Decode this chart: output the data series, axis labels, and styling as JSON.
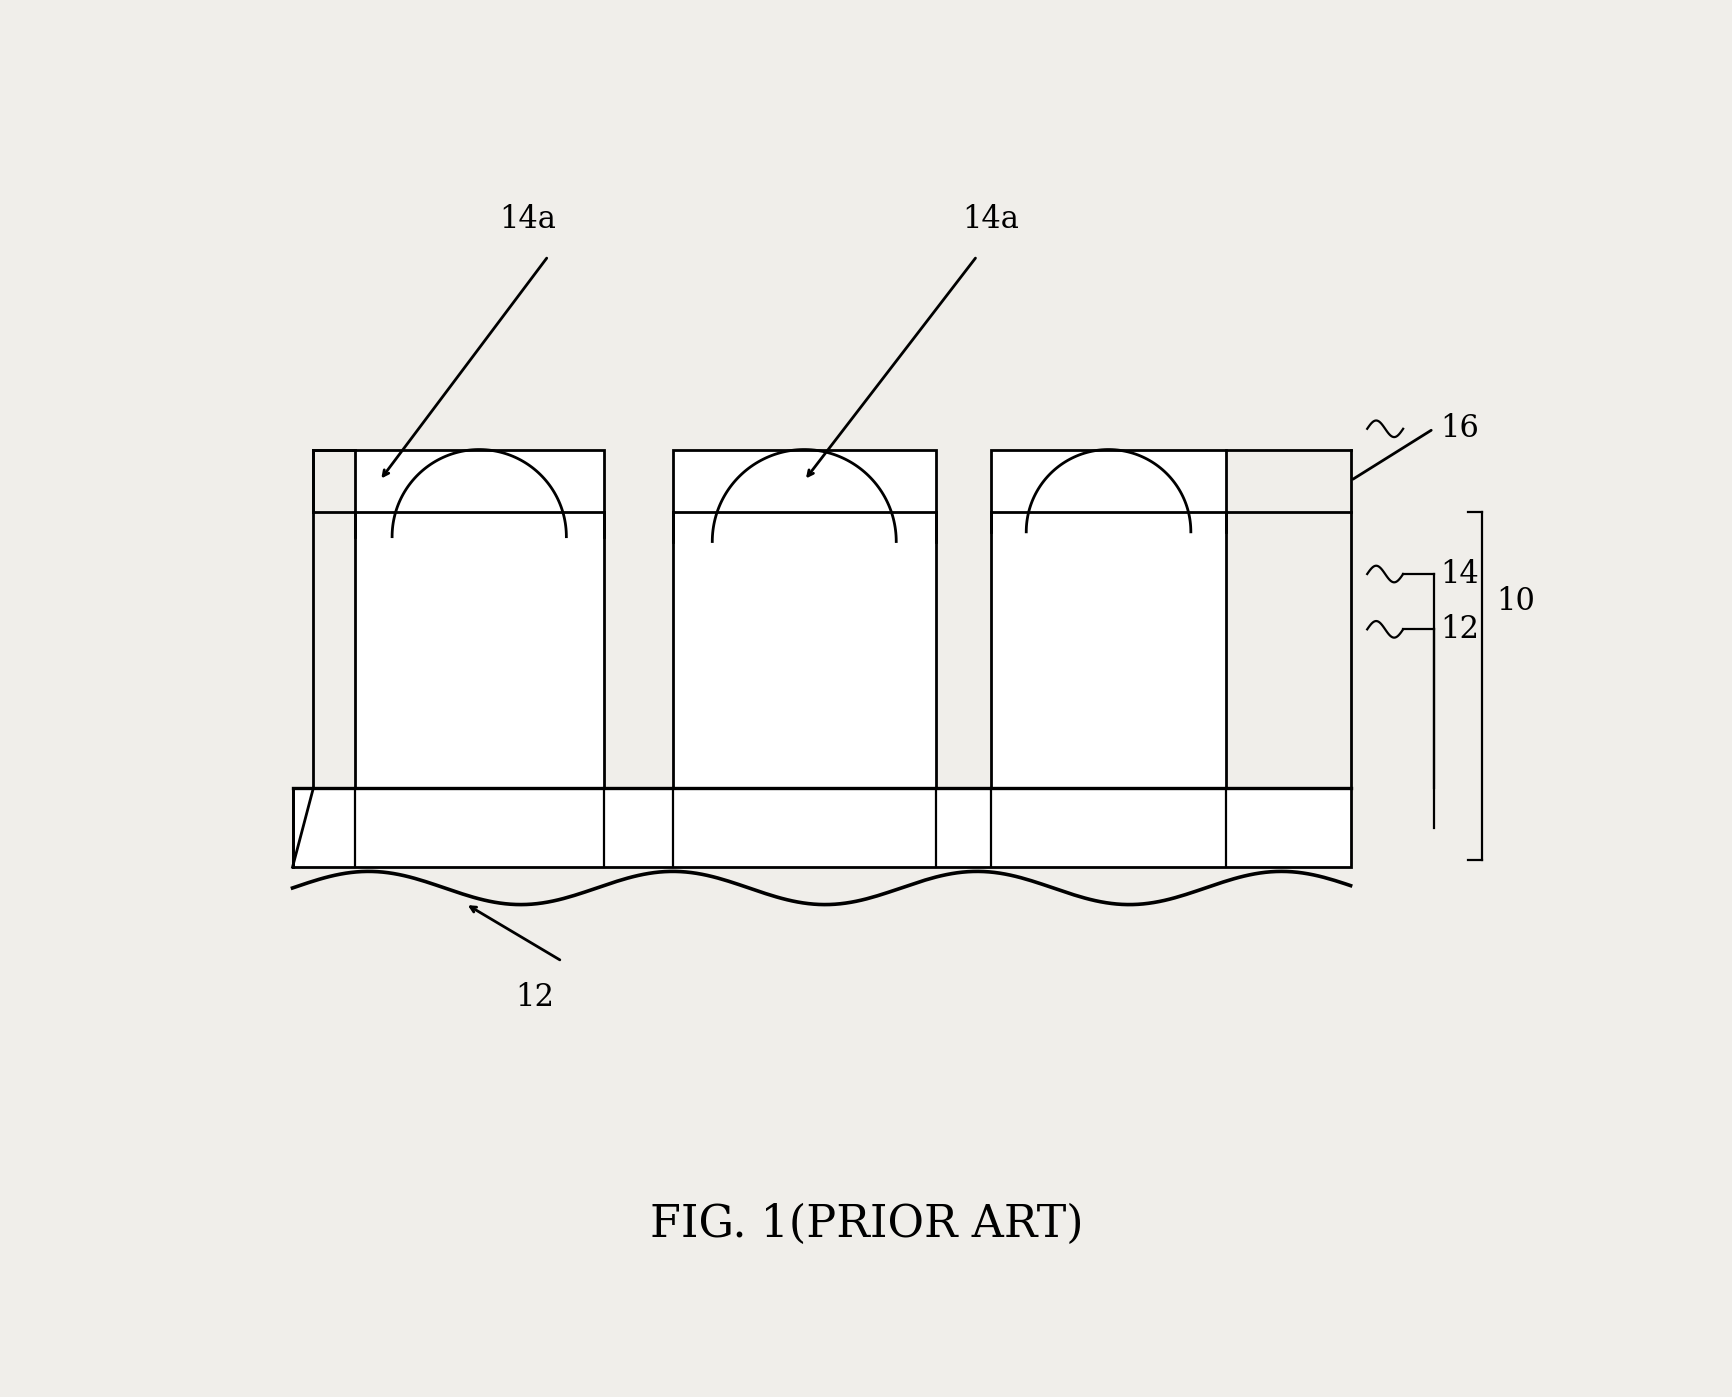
{
  "title": "FIG. 1(PRIOR ART)",
  "bg_color": "#f0eeea",
  "line_color": "#000000",
  "line_width": 2.0,
  "fig_width": 17.33,
  "fig_height": 13.97,
  "labels": {
    "14a_left": "14a",
    "14a_right": "14a",
    "16": "16",
    "14": "14",
    "12_right": "12",
    "10": "10",
    "12_bottom": "12"
  },
  "label_fontsize": 22
}
